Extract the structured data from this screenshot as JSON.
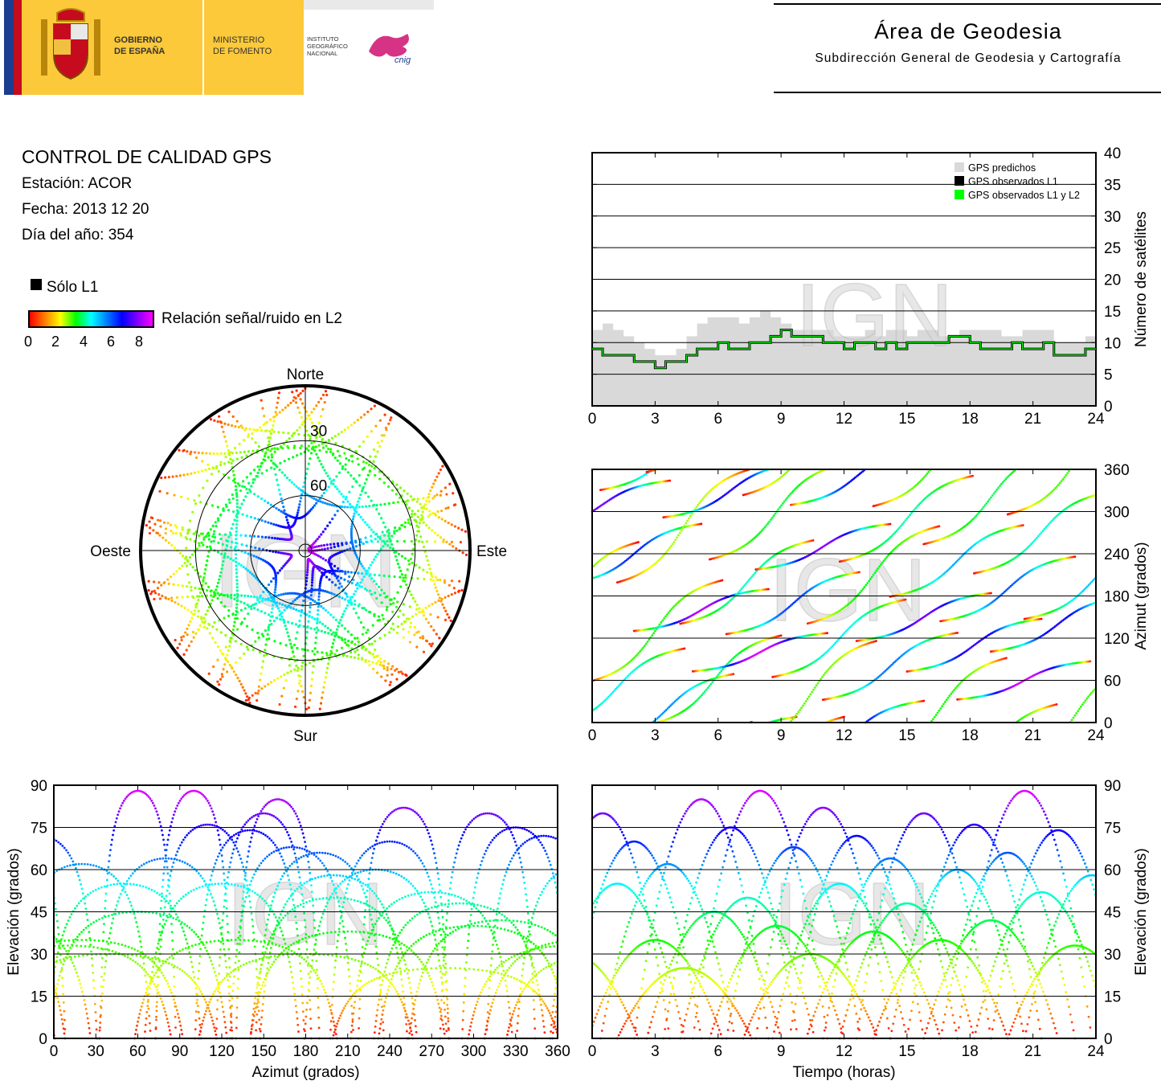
{
  "header": {
    "gov_line1": "GOBIERNO",
    "gov_line2": "DE ESPAÑA",
    "min_line1": "MINISTERIO",
    "min_line2": "DE FOMENTO",
    "ign_line1": "INSTITUTO",
    "ign_line2": "GEOGRÁFICO",
    "ign_line3": "NACIONAL",
    "cnig_logo": "cnig",
    "area_title": "Área de Geodesia",
    "area_subtitle": "Subdirección General de Geodesia y Cartografía",
    "brand_color": "#fbc93a"
  },
  "info": {
    "title": "CONTROL DE CALIDAD GPS",
    "station": "Estación: ACOR",
    "date": "Fecha: 2013 12 20",
    "doy": "Día del año: 354",
    "legend_l1": "Sólo L1",
    "colorbar_label": "Relación señal/ruido en L2",
    "colorbar_ticks": [
      "0",
      "2",
      "4",
      "6",
      "8"
    ]
  },
  "watermark": "IGN",
  "chart_data": [
    {
      "id": "skyplot",
      "type": "scatter",
      "title": "",
      "labels": {
        "north": "Norte",
        "south": "Sur",
        "east": "Este",
        "west": "Oeste"
      },
      "elevation_rings": [
        0,
        30,
        60
      ],
      "ring_labels": [
        "30",
        "60"
      ],
      "note_colors": [
        "#ff0000",
        "#ffff00",
        "#00ff00",
        "#00ffff",
        "#0000ff",
        "#ff00ff"
      ]
    },
    {
      "id": "satellites",
      "type": "area",
      "xlabel": "",
      "ylabel": "Número de satélites",
      "xlim": [
        0,
        24
      ],
      "ylim": [
        0,
        40
      ],
      "xticks": [
        0,
        3,
        6,
        9,
        12,
        15,
        18,
        21,
        24
      ],
      "yticks": [
        0,
        5,
        10,
        15,
        20,
        25,
        30,
        35,
        40
      ],
      "legend_position": "top-right",
      "series": [
        {
          "name": "GPS predichos",
          "color": "#d9d9d9",
          "x": [
            0,
            0.5,
            1,
            1.5,
            2,
            2.5,
            3,
            3.5,
            4,
            4.5,
            5,
            5.5,
            6,
            6.5,
            7,
            7.5,
            8,
            8.5,
            9,
            9.5,
            10,
            10.5,
            11,
            11.5,
            12,
            12.5,
            13,
            13.5,
            14,
            14.5,
            15,
            15.5,
            16,
            16.5,
            17,
            17.5,
            18,
            18.5,
            19,
            19.5,
            20,
            20.5,
            21,
            21.5,
            22,
            22.5,
            23,
            23.5,
            24
          ],
          "values": [
            12,
            13,
            12,
            11,
            10,
            9,
            8,
            8,
            9,
            11,
            13,
            14,
            14,
            14,
            13,
            14,
            15,
            14,
            13,
            12,
            12,
            12,
            12,
            11,
            11,
            11,
            12,
            11,
            12,
            12,
            11,
            12,
            12,
            11,
            11,
            12,
            12,
            12,
            12,
            11,
            11,
            12,
            12,
            12,
            10,
            10,
            10,
            11,
            10
          ]
        },
        {
          "name": "GPS observados L1",
          "color": "#000000",
          "x": [
            0,
            0.5,
            1,
            1.5,
            2,
            2.5,
            3,
            3.5,
            4,
            4.5,
            5,
            5.5,
            6,
            6.5,
            7,
            7.5,
            8,
            8.5,
            9,
            9.5,
            10,
            10.5,
            11,
            11.5,
            12,
            12.5,
            13,
            13.5,
            14,
            14.5,
            15,
            15.5,
            16,
            16.5,
            17,
            17.5,
            18,
            18.5,
            19,
            19.5,
            20,
            20.5,
            21,
            21.5,
            22,
            22.5,
            23,
            23.5,
            24
          ],
          "values": [
            9,
            8,
            8,
            8,
            7,
            7,
            6,
            7,
            7,
            8,
            9,
            9,
            10,
            9,
            9,
            10,
            10,
            11,
            12,
            11,
            11,
            11,
            10,
            10,
            9,
            10,
            10,
            9,
            10,
            9,
            10,
            10,
            10,
            10,
            11,
            11,
            10,
            9,
            9,
            9,
            10,
            9,
            9,
            10,
            8,
            8,
            8,
            9,
            9
          ]
        },
        {
          "name": "GPS observados L1 y L2",
          "color": "#00ff00",
          "x": [
            0,
            0.5,
            1,
            1.5,
            2,
            2.5,
            3,
            3.5,
            4,
            4.5,
            5,
            5.5,
            6,
            6.5,
            7,
            7.5,
            8,
            8.5,
            9,
            9.5,
            10,
            10.5,
            11,
            11.5,
            12,
            12.5,
            13,
            13.5,
            14,
            14.5,
            15,
            15.5,
            16,
            16.5,
            17,
            17.5,
            18,
            18.5,
            19,
            19.5,
            20,
            20.5,
            21,
            21.5,
            22,
            22.5,
            23,
            23.5,
            24
          ],
          "values": [
            9,
            8,
            8,
            8,
            7,
            7,
            6,
            7,
            7,
            8,
            9,
            9,
            10,
            9,
            9,
            10,
            10,
            11,
            12,
            11,
            11,
            11,
            10,
            10,
            9,
            10,
            10,
            9,
            10,
            9,
            10,
            10,
            10,
            10,
            11,
            11,
            10,
            9,
            9,
            9,
            10,
            9,
            9,
            10,
            8,
            8,
            8,
            9,
            9
          ]
        }
      ]
    },
    {
      "id": "azimuth_time",
      "type": "scatter",
      "xlabel": "",
      "ylabel": "Azimut (grados)",
      "xlim": [
        0,
        24
      ],
      "ylim": [
        0,
        360
      ],
      "xticks": [
        0,
        3,
        6,
        9,
        12,
        15,
        18,
        21,
        24
      ],
      "yticks": [
        0,
        60,
        120,
        180,
        240,
        300,
        360
      ]
    },
    {
      "id": "elevation_azimuth",
      "type": "scatter",
      "xlabel": "Azimut (grados)",
      "ylabel": "Elevación (grados)",
      "xlim": [
        0,
        360
      ],
      "ylim": [
        0,
        90
      ],
      "xticks": [
        0,
        30,
        60,
        90,
        120,
        150,
        180,
        210,
        240,
        270,
        300,
        330,
        360
      ],
      "yticks": [
        0,
        15,
        30,
        45,
        60,
        75,
        90
      ]
    },
    {
      "id": "elevation_time",
      "type": "scatter",
      "xlabel": "Tiempo (horas)",
      "ylabel": "Elevación (grados)",
      "xlim": [
        0,
        24
      ],
      "ylim": [
        0,
        90
      ],
      "xticks": [
        0,
        3,
        6,
        9,
        12,
        15,
        18,
        21,
        24
      ],
      "yticks": [
        0,
        15,
        30,
        45,
        60,
        75,
        90
      ]
    }
  ]
}
